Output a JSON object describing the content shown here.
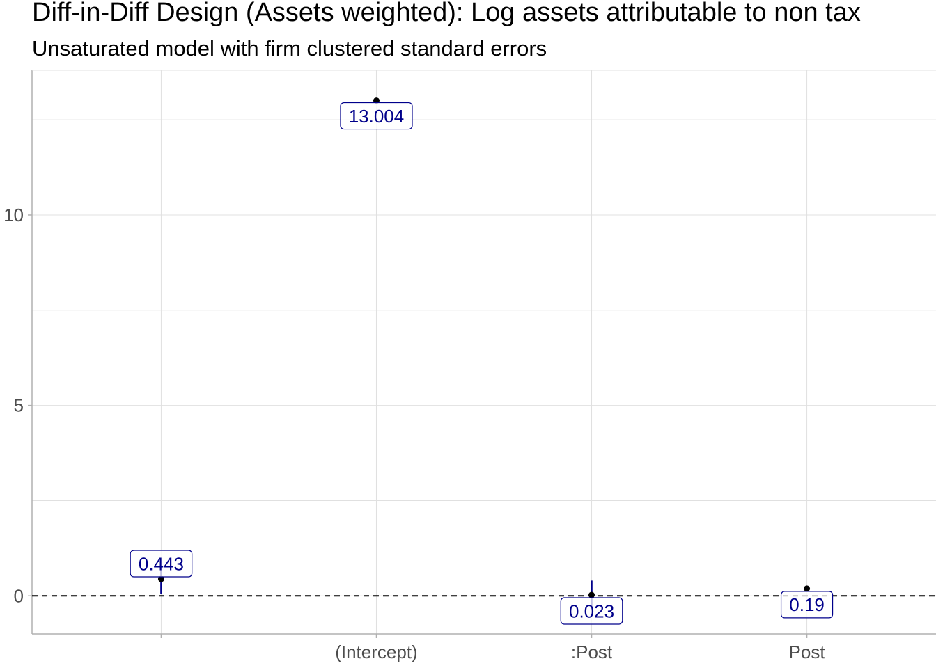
{
  "chart_data": {
    "type": "scatter",
    "title": "Diff-in-Diff Design (Assets weighted): Log assets attributable to non tax",
    "subtitle": "Unsaturated model with firm clustered standard errors",
    "xlabel": "",
    "ylabel": "",
    "categories": [
      "",
      "(Intercept)",
      ":Post",
      "Post"
    ],
    "yticks": [
      0,
      5,
      10
    ],
    "ylim": [
      -1.0,
      13.8
    ],
    "grid": true,
    "reference_line": {
      "y": 0,
      "style": "dashed"
    },
    "series": [
      {
        "estimates": [
          0.443,
          13.004,
          0.023,
          0.19
        ],
        "ci_low": [
          0.05,
          12.96,
          -0.35,
          0.12
        ],
        "ci_high": [
          0.77,
          13.06,
          0.4,
          0.26
        ],
        "labels": [
          "0.443",
          "13.004",
          "0.023",
          "0.19"
        ]
      }
    ],
    "colors": {
      "point": "#000000",
      "errorbar": "#00008b",
      "label_text": "#00008b",
      "label_border": "#00008b",
      "grid": "#e0e0e0",
      "axis": "#b0b0b0"
    }
  }
}
